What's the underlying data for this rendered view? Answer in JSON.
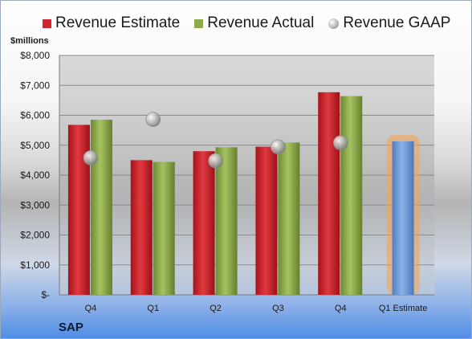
{
  "chart_data": {
    "type": "bar",
    "units_label": "$millions",
    "company": "SAP",
    "categories": [
      "Q4",
      "Q1",
      "Q2",
      "Q3",
      "Q4",
      "Q1 Estimate"
    ],
    "series": [
      {
        "name": "Revenue Estimate",
        "type": "bar",
        "color": "#d0262e",
        "values": [
          5680,
          4500,
          4800,
          4950,
          6770,
          null
        ]
      },
      {
        "name": "Revenue Actual",
        "type": "bar",
        "color": "#8faa4b",
        "values": [
          5850,
          4440,
          4930,
          5090,
          6640,
          null
        ]
      },
      {
        "name": "Revenue GAAP",
        "type": "scatter",
        "color": "#b0b0b0",
        "values": [
          4580,
          5860,
          4480,
          4940,
          5080,
          null
        ]
      },
      {
        "name": "Q1 Estimate",
        "type": "bar",
        "color": "#6f9ad6",
        "highlight": "#f5a250",
        "values": [
          null,
          null,
          null,
          null,
          null,
          5130
        ]
      }
    ],
    "ylim": [
      0,
      8000
    ],
    "y_ticks": [
      0,
      1000,
      2000,
      3000,
      4000,
      5000,
      6000,
      7000,
      8000
    ],
    "y_tick_labels": [
      "$-",
      "$1,000",
      "$2,000",
      "$3,000",
      "$4,000",
      "$5,000",
      "$6,000",
      "$7,000",
      "$8,000"
    ],
    "grid": true,
    "legend_position": "top"
  }
}
